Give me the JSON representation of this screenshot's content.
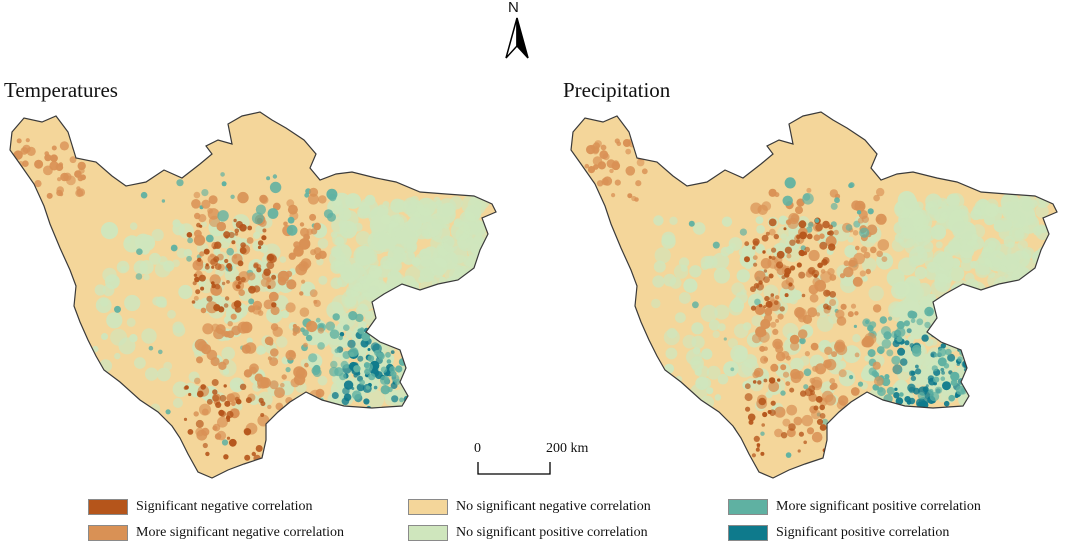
{
  "north_label": "N",
  "panels": [
    {
      "title": "Temperatures"
    },
    {
      "title": "Precipitation"
    }
  ],
  "scale": {
    "zero": "0",
    "max": "200 km"
  },
  "legend": [
    {
      "label": "Significant negative correlation",
      "color": "#b5551b"
    },
    {
      "label": "More significant negative correlation",
      "color": "#d99155"
    },
    {
      "label": "No significant negative correlation",
      "color": "#f4d69a"
    },
    {
      "label": "No significant positive correlation",
      "color": "#cfe6bd"
    },
    {
      "label": "More significant positive correlation",
      "color": "#5fb1a2"
    },
    {
      "label": "Significant positive correlation",
      "color": "#0e7a8c"
    }
  ]
}
